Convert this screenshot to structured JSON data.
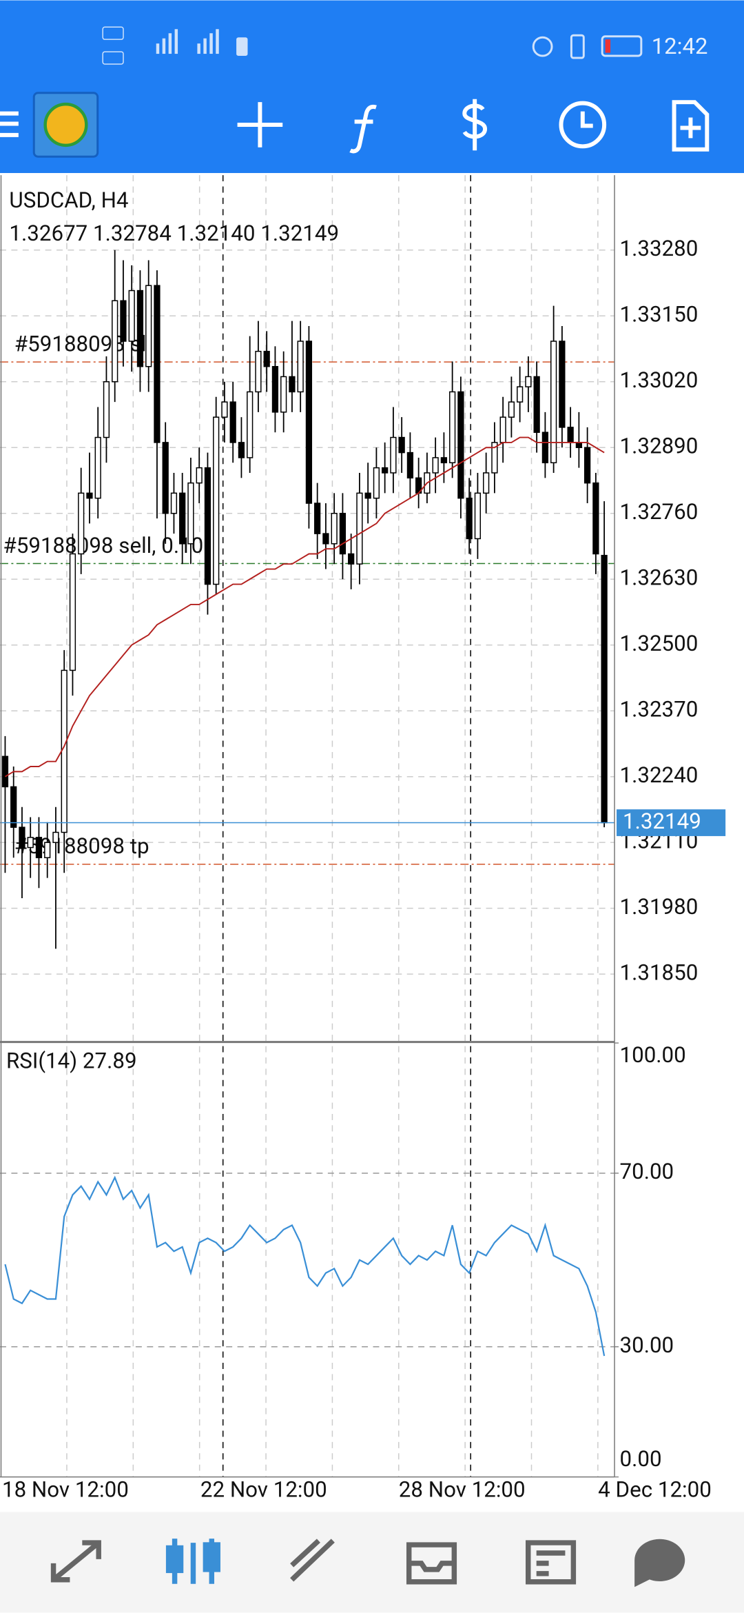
{
  "status_bar": {
    "time": "12:42"
  },
  "chart_data": [
    {
      "type": "candlestick",
      "title": "USDCAD, H4",
      "subtitle": "1.32677 1.32784 1.32140 1.32149",
      "open": [
        1.3228,
        1.3222,
        1.3214,
        1.321,
        1.3212,
        1.3208,
        1.3211,
        1.3213,
        1.3245,
        1.3268,
        1.328,
        1.3279,
        1.3291,
        1.3302,
        1.3318,
        1.331,
        1.332,
        1.3305,
        1.3321,
        1.329,
        1.3276,
        1.328,
        1.327,
        1.3282,
        1.3285,
        1.3262,
        1.3295,
        1.3298,
        1.329,
        1.3287,
        1.33,
        1.3308,
        1.3305,
        1.3296,
        1.3303,
        1.33,
        1.331,
        1.3278,
        1.3272,
        1.327,
        1.3276,
        1.3268,
        1.3266,
        1.328,
        1.3279,
        1.3285,
        1.3284,
        1.3291,
        1.3288,
        1.3283,
        1.328,
        1.3284,
        1.3287,
        1.3286,
        1.33,
        1.3279,
        1.3271,
        1.328,
        1.3284,
        1.329,
        1.3295,
        1.3298,
        1.3301,
        1.3303,
        1.3292,
        1.3286,
        1.331,
        1.3293,
        1.329,
        1.3289,
        1.3282,
        1.32677
      ],
      "high": [
        1.3232,
        1.3226,
        1.3218,
        1.3216,
        1.3216,
        1.3215,
        1.3218,
        1.3249,
        1.3272,
        1.3285,
        1.3288,
        1.3297,
        1.3307,
        1.3328,
        1.3326,
        1.3325,
        1.3324,
        1.3326,
        1.3324,
        1.3294,
        1.3284,
        1.3284,
        1.3287,
        1.3289,
        1.3288,
        1.3299,
        1.3302,
        1.3302,
        1.3295,
        1.3311,
        1.3314,
        1.3312,
        1.3309,
        1.3308,
        1.3314,
        1.3314,
        1.3313,
        1.3282,
        1.3278,
        1.328,
        1.328,
        1.3272,
        1.3284,
        1.3286,
        1.3289,
        1.329,
        1.3297,
        1.3295,
        1.3292,
        1.3287,
        1.3288,
        1.3291,
        1.3292,
        1.3306,
        1.3303,
        1.3283,
        1.3284,
        1.3288,
        1.3294,
        1.3299,
        1.3303,
        1.3305,
        1.3307,
        1.3306,
        1.3296,
        1.3317,
        1.3313,
        1.3297,
        1.3296,
        1.3293,
        1.3284,
        1.32784
      ],
      "low": [
        1.3205,
        1.3208,
        1.32,
        1.3204,
        1.3202,
        1.3204,
        1.319,
        1.3205,
        1.324,
        1.3264,
        1.3274,
        1.3275,
        1.3286,
        1.3298,
        1.3305,
        1.3304,
        1.33,
        1.33,
        1.3275,
        1.327,
        1.3272,
        1.3266,
        1.3266,
        1.3278,
        1.3256,
        1.326,
        1.329,
        1.3286,
        1.3283,
        1.3284,
        1.3296,
        1.33,
        1.3292,
        1.3292,
        1.3296,
        1.3296,
        1.3273,
        1.3267,
        1.3265,
        1.3266,
        1.3263,
        1.3261,
        1.3262,
        1.3274,
        1.3275,
        1.328,
        1.328,
        1.3284,
        1.3279,
        1.3277,
        1.3278,
        1.328,
        1.3282,
        1.3283,
        1.3275,
        1.3268,
        1.3267,
        1.3276,
        1.328,
        1.3286,
        1.3291,
        1.3294,
        1.3296,
        1.3288,
        1.3283,
        1.3284,
        1.3289,
        1.3287,
        1.3285,
        1.3278,
        1.3264,
        1.3214
      ],
      "close": [
        1.3222,
        1.3214,
        1.321,
        1.3212,
        1.3208,
        1.3211,
        1.3213,
        1.3245,
        1.3268,
        1.328,
        1.3279,
        1.3291,
        1.3302,
        1.3318,
        1.331,
        1.332,
        1.3305,
        1.3321,
        1.329,
        1.3276,
        1.328,
        1.327,
        1.3282,
        1.3285,
        1.3262,
        1.3295,
        1.3298,
        1.329,
        1.3287,
        1.33,
        1.3308,
        1.3305,
        1.3296,
        1.3303,
        1.33,
        1.331,
        1.3278,
        1.3272,
        1.327,
        1.3276,
        1.3268,
        1.3266,
        1.328,
        1.3279,
        1.3285,
        1.3284,
        1.3291,
        1.3288,
        1.3283,
        1.328,
        1.3284,
        1.3287,
        1.3286,
        1.33,
        1.3279,
        1.3271,
        1.328,
        1.3284,
        1.329,
        1.3295,
        1.3298,
        1.3301,
        1.3303,
        1.3292,
        1.3286,
        1.331,
        1.3293,
        1.329,
        1.3289,
        1.3282,
        1.3268,
        1.32149
      ],
      "moving_average": {
        "color": "#b3201e",
        "values": [
          1.3224,
          1.3225,
          1.3225,
          1.3226,
          1.3226,
          1.3227,
          1.3227,
          1.323,
          1.3234,
          1.3237,
          1.324,
          1.3242,
          1.3244,
          1.3246,
          1.3248,
          1.325,
          1.3251,
          1.3252,
          1.3254,
          1.3255,
          1.3256,
          1.3257,
          1.3258,
          1.3258,
          1.3259,
          1.326,
          1.3261,
          1.3262,
          1.3262,
          1.3263,
          1.3264,
          1.3265,
          1.3265,
          1.3266,
          1.3266,
          1.3267,
          1.3268,
          1.3268,
          1.3269,
          1.3269,
          1.327,
          1.3271,
          1.3272,
          1.3273,
          1.3274,
          1.3276,
          1.3277,
          1.3278,
          1.3279,
          1.328,
          1.3282,
          1.3283,
          1.3284,
          1.3285,
          1.3286,
          1.3287,
          1.3288,
          1.3289,
          1.3289,
          1.329,
          1.329,
          1.3291,
          1.3291,
          1.329,
          1.329,
          1.329,
          1.329,
          1.329,
          1.329,
          1.329,
          1.3289,
          1.3288
        ]
      },
      "ylim": [
        1.31718,
        1.33428
      ],
      "yticks": [
        {
          "value": 1.3328,
          "label": "1.33280"
        },
        {
          "value": 1.3315,
          "label": "1.33150"
        },
        {
          "value": 1.3302,
          "label": "1.33020"
        },
        {
          "value": 1.3289,
          "label": "1.32890"
        },
        {
          "value": 1.3276,
          "label": "1.32760"
        },
        {
          "value": 1.3263,
          "label": "1.32630"
        },
        {
          "value": 1.325,
          "label": "1.32500"
        },
        {
          "value": 1.3237,
          "label": "1.32370"
        },
        {
          "value": 1.3224,
          "label": "1.32240"
        },
        {
          "value": 1.3211,
          "label": "1.32110"
        },
        {
          "value": 1.3198,
          "label": "1.31980"
        },
        {
          "value": 1.3185,
          "label": "1.31850"
        }
      ],
      "grid": true,
      "current_price": 1.32149,
      "orders": [
        {
          "label": "#59188098 sl",
          "price": 1.33059,
          "color": "#d2552a"
        },
        {
          "label": "#59188098 sell, 0.10",
          "price": 1.32661,
          "color": "#2a7a2a"
        },
        {
          "label": "#59188098 tp",
          "price": 1.32067,
          "color": "#d2552a"
        }
      ],
      "x_labels": [
        "18 Nov 12:00",
        "22 Nov 12:00",
        "28 Nov 12:00",
        "4 Dec 12:00"
      ]
    },
    {
      "type": "line",
      "title": "RSI(14) 27.89",
      "color": "#3a8fd6",
      "values": [
        49,
        41,
        40,
        43,
        42,
        41,
        41,
        60,
        65,
        67,
        64,
        68,
        65,
        69,
        64,
        66,
        62,
        65,
        53,
        54,
        52,
        53,
        47,
        54,
        55,
        54,
        52,
        53,
        55,
        58,
        56,
        54,
        55,
        57,
        58,
        54,
        46,
        44,
        47,
        48,
        44,
        46,
        50,
        49,
        51,
        53,
        55,
        51,
        49,
        51,
        50,
        52,
        51,
        58,
        49,
        47,
        52,
        51,
        54,
        56,
        58,
        57,
        56,
        52,
        58,
        51,
        50,
        49,
        48,
        44,
        38,
        27.89
      ],
      "ylim": [
        0,
        100
      ],
      "yticks": [
        {
          "value": 100,
          "label": "100.00"
        },
        {
          "value": 70,
          "label": "70.00"
        },
        {
          "value": 30,
          "label": "30.00"
        },
        {
          "value": 0,
          "label": "0.00"
        }
      ],
      "levels": [
        70,
        30
      ]
    }
  ]
}
